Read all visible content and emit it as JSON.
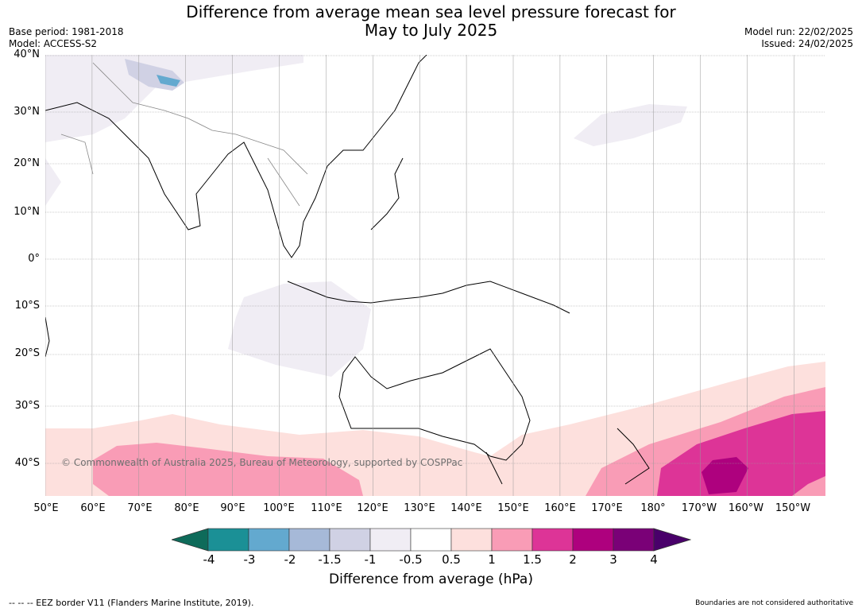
{
  "title_line1": "Difference from average mean sea level pressure forecast for",
  "title_line2": "May to July 2025",
  "meta_left": [
    "Base period: 1981-2018",
    "Model: ACCESS-S2"
  ],
  "meta_right": [
    "Model run: 22/02/2025",
    "Issued: 24/02/2025"
  ],
  "lat_labels": [
    "40°N",
    "30°N",
    "20°N",
    "10°N",
    "0°",
    "10°S",
    "20°S",
    "30°S",
    "40°S"
  ],
  "lon_labels": [
    "50°E",
    "60°E",
    "70°E",
    "80°E",
    "90°E",
    "100°E",
    "110°E",
    "120°E",
    "130°E",
    "140°E",
    "150°E",
    "160°E",
    "170°E",
    "180°",
    "170°W",
    "160°W",
    "150°W"
  ],
  "copyright": "© Commonwealth of Australia 2025, Bureau of Meteorology, supported by COSPPac",
  "colorbar": {
    "ticks": [
      "-4",
      "-3",
      "-2",
      "-1.5",
      "-1",
      "-0.5",
      "0.5",
      "1",
      "1.5",
      "2",
      "3",
      "4"
    ],
    "colors": [
      "#0e6b5a",
      "#1b9096",
      "#63a9cf",
      "#a6b9d8",
      "#d0d1e4",
      "#f0edf4",
      "#ffffff",
      "#fde0dd",
      "#f99cb6",
      "#dd3497",
      "#ae017e",
      "#7a0177",
      "#49006a"
    ],
    "label": "Difference from average (hPa)"
  },
  "footer_left": "--  --  -- EEZ border V11 (Flanders Marine Institute, 2019).",
  "footer_right": "Boundaries are not considered authoritative"
}
